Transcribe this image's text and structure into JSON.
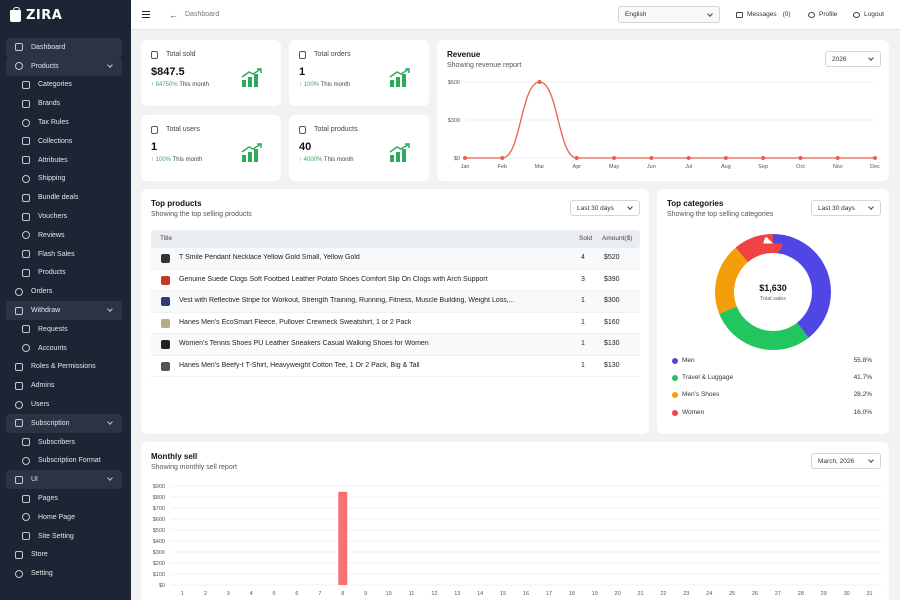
{
  "app": {
    "name": "ZIRA"
  },
  "sidebar": {
    "items": [
      {
        "label": "Dashboard",
        "icon": "dashboard-icon",
        "level": 0,
        "state": "active"
      },
      {
        "label": "Products",
        "icon": "box-icon",
        "level": 0,
        "state": "open"
      },
      {
        "label": "Categories",
        "icon": "categories-icon",
        "level": 1
      },
      {
        "label": "Brands",
        "icon": "brand-icon",
        "level": 1
      },
      {
        "label": "Tax Rules",
        "icon": "tax-icon",
        "level": 1
      },
      {
        "label": "Collections",
        "icon": "collection-icon",
        "level": 1
      },
      {
        "label": "Attributes",
        "icon": "tag-icon",
        "level": 1
      },
      {
        "label": "Shipping",
        "icon": "truck-icon",
        "level": 1
      },
      {
        "label": "Bundle deals",
        "icon": "bundle-icon",
        "level": 1
      },
      {
        "label": "Vouchers",
        "icon": "voucher-icon",
        "level": 1
      },
      {
        "label": "Reviews",
        "icon": "review-icon",
        "level": 1
      },
      {
        "label": "Flash Sales",
        "icon": "flash-icon",
        "level": 1
      },
      {
        "label": "Products",
        "icon": "box-icon",
        "level": 1
      },
      {
        "label": "Orders",
        "icon": "orders-icon",
        "level": 0
      },
      {
        "label": "Withdraw",
        "icon": "wallet-icon",
        "level": 0,
        "state": "open"
      },
      {
        "label": "Requests",
        "icon": "request-icon",
        "level": 1
      },
      {
        "label": "Accounts",
        "icon": "account-icon",
        "level": 1
      },
      {
        "label": "Roles & Permissions",
        "icon": "shield-icon",
        "level": 0
      },
      {
        "label": "Admins",
        "icon": "admin-icon",
        "level": 0
      },
      {
        "label": "Users",
        "icon": "user-icon",
        "level": 0
      },
      {
        "label": "Subscription",
        "icon": "subscription-icon",
        "level": 0,
        "state": "open"
      },
      {
        "label": "Subscribers",
        "icon": "subscriber-icon",
        "level": 1
      },
      {
        "label": "Subscription Format",
        "icon": "format-icon",
        "level": 1
      },
      {
        "label": "UI",
        "icon": "ui-icon",
        "level": 0,
        "state": "open"
      },
      {
        "label": "Pages",
        "icon": "page-icon",
        "level": 1
      },
      {
        "label": "Home Page",
        "icon": "home-icon",
        "level": 1
      },
      {
        "label": "Site Setting",
        "icon": "setting-icon",
        "level": 1
      },
      {
        "label": "Store",
        "icon": "store-icon",
        "level": 0
      },
      {
        "label": "Setting",
        "icon": "gear-icon",
        "level": 0
      }
    ]
  },
  "topbar": {
    "breadcrumb": "Dashboard",
    "language": "English",
    "messages_label": "Messages",
    "messages_count": "(0)",
    "profile_label": "Profile",
    "logout_label": "Logout"
  },
  "stats": [
    {
      "label": "Total sold",
      "value": "$847.5",
      "change": "84750%",
      "period": "This month"
    },
    {
      "label": "Total orders",
      "value": "1",
      "change": "100%",
      "period": "This month"
    },
    {
      "label": "Total users",
      "value": "1",
      "change": "100%",
      "period": "This month"
    },
    {
      "label": "Total products",
      "value": "40",
      "change": "4000%",
      "period": "This month"
    }
  ],
  "revenue": {
    "title": "Revenue",
    "subtitle": "Showing revenue report",
    "year": "2026"
  },
  "top_products": {
    "title": "Top products",
    "subtitle": "Showing the top selling products",
    "period": "Last 30 days",
    "columns": [
      "Title",
      "Sold",
      "Amount($)"
    ],
    "rows": [
      {
        "title": "T Smile Pendant Necklace Yellow Gold Small, Yellow Gold",
        "sold": "4",
        "amount": "$520",
        "thumb": "#333333"
      },
      {
        "title": "Genuine Suede Clogs Soft Footbed Leather Potato Shoes Comfort Slip On Clogs with Arch Support",
        "sold": "3",
        "amount": "$390",
        "thumb": "#c0392b"
      },
      {
        "title": "Vest with Reflective Stripe for Workout, Strength Training, Running, Fitness, Muscle Building, Weight Loss,...",
        "sold": "1",
        "amount": "$300",
        "thumb": "#2c3e7a"
      },
      {
        "title": "Hanes Men's EcoSmart Fleece, Pullover Crewneck Sweatshirt, 1 or 2 Pack",
        "sold": "1",
        "amount": "$160",
        "thumb": "#b8a98a"
      },
      {
        "title": "Women's Tennis Shoes PU Leather Sneakers Casual Walking Shoes for Women",
        "sold": "1",
        "amount": "$130",
        "thumb": "#222222"
      },
      {
        "title": "Hanes Men's Beefy-t T-Shirt, Heavyweight Cotton Tee, 1 Or 2 Pack, Big & Tall",
        "sold": "1",
        "amount": "$130",
        "thumb": "#555555"
      }
    ]
  },
  "top_categories": {
    "title": "Top categories",
    "subtitle": "Showing the top selling categories",
    "period": "Last 30 days",
    "total_value": "$1,630",
    "total_label": "Total sales"
  },
  "monthly": {
    "title": "Monthly sell",
    "subtitle": "Showing monthly sell report",
    "month": "March, 2026"
  },
  "chart_data": [
    {
      "type": "line",
      "x": [
        "Jan",
        "Feb",
        "Mar",
        "Apr",
        "May",
        "Jun",
        "Jul",
        "Aug",
        "Sep",
        "Oct",
        "Nov",
        "Dec"
      ],
      "values": [
        0,
        0,
        600,
        0,
        0,
        0,
        0,
        0,
        0,
        0,
        0,
        0
      ],
      "y_ticks": [
        "$0",
        "$300",
        "$600"
      ],
      "ylim": [
        0,
        600
      ],
      "color": "#e8604c"
    },
    {
      "type": "pie",
      "labels": [
        "Men",
        "Travel & Luggage",
        "Men's Shoes",
        "Women"
      ],
      "values": [
        55.8,
        41.7,
        28.2,
        16.0
      ],
      "display": [
        "55.8%",
        "41.7%",
        "28.2%",
        "16.0%"
      ],
      "colors": [
        "#4f46e5",
        "#22c55e",
        "#f59e0b",
        "#ef4444"
      ]
    },
    {
      "type": "bar",
      "categories": [
        "1",
        "2",
        "3",
        "4",
        "5",
        "6",
        "7",
        "8",
        "9",
        "10",
        "11",
        "12",
        "13",
        "14",
        "15",
        "16",
        "17",
        "18",
        "19",
        "20",
        "21",
        "22",
        "23",
        "24",
        "25",
        "26",
        "27",
        "28",
        "29",
        "30",
        "31"
      ],
      "values": [
        0,
        0,
        0,
        0,
        0,
        0,
        0,
        847.5,
        0,
        0,
        0,
        0,
        0,
        0,
        0,
        0,
        0,
        0,
        0,
        0,
        0,
        0,
        0,
        0,
        0,
        0,
        0,
        0,
        0,
        0,
        0
      ],
      "y_ticks": [
        "$0",
        "$100",
        "$200",
        "$300",
        "$400",
        "$500",
        "$600",
        "$700",
        "$800",
        "$900"
      ],
      "ylim": [
        0,
        900
      ],
      "color": "#f87171"
    }
  ]
}
